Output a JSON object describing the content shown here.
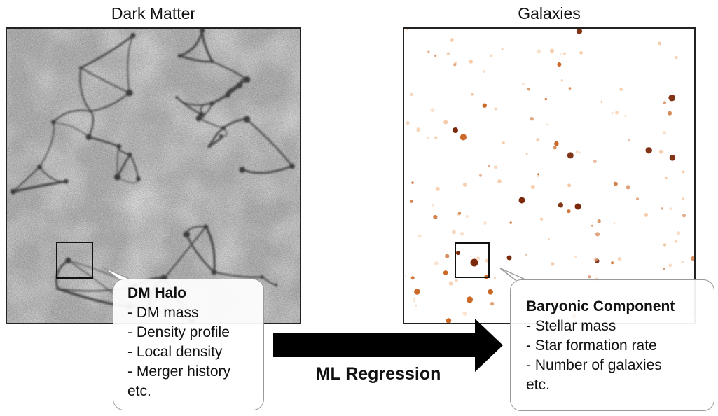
{
  "panels": {
    "dark_matter": {
      "title": "Dark Matter"
    },
    "galaxies": {
      "title": "Galaxies"
    }
  },
  "dm_halo": {
    "heading": "DM Halo",
    "items": [
      "- DM mass",
      "- Density profile",
      "- Local density",
      "- Merger history",
      "etc."
    ]
  },
  "baryonic": {
    "heading": "Baryonic Component",
    "items": [
      "- Stellar mass",
      "- Star formation rate",
      "- Number of galaxies",
      "etc."
    ]
  },
  "arrow": {
    "label": "ML Regression"
  },
  "colors": {
    "arrow": "#000000",
    "galaxy_dark": "#7a2a0a",
    "galaxy_mid": "#c8611e",
    "galaxy_light": "#f3c29a",
    "dm_filament": "#1a1a1a"
  }
}
